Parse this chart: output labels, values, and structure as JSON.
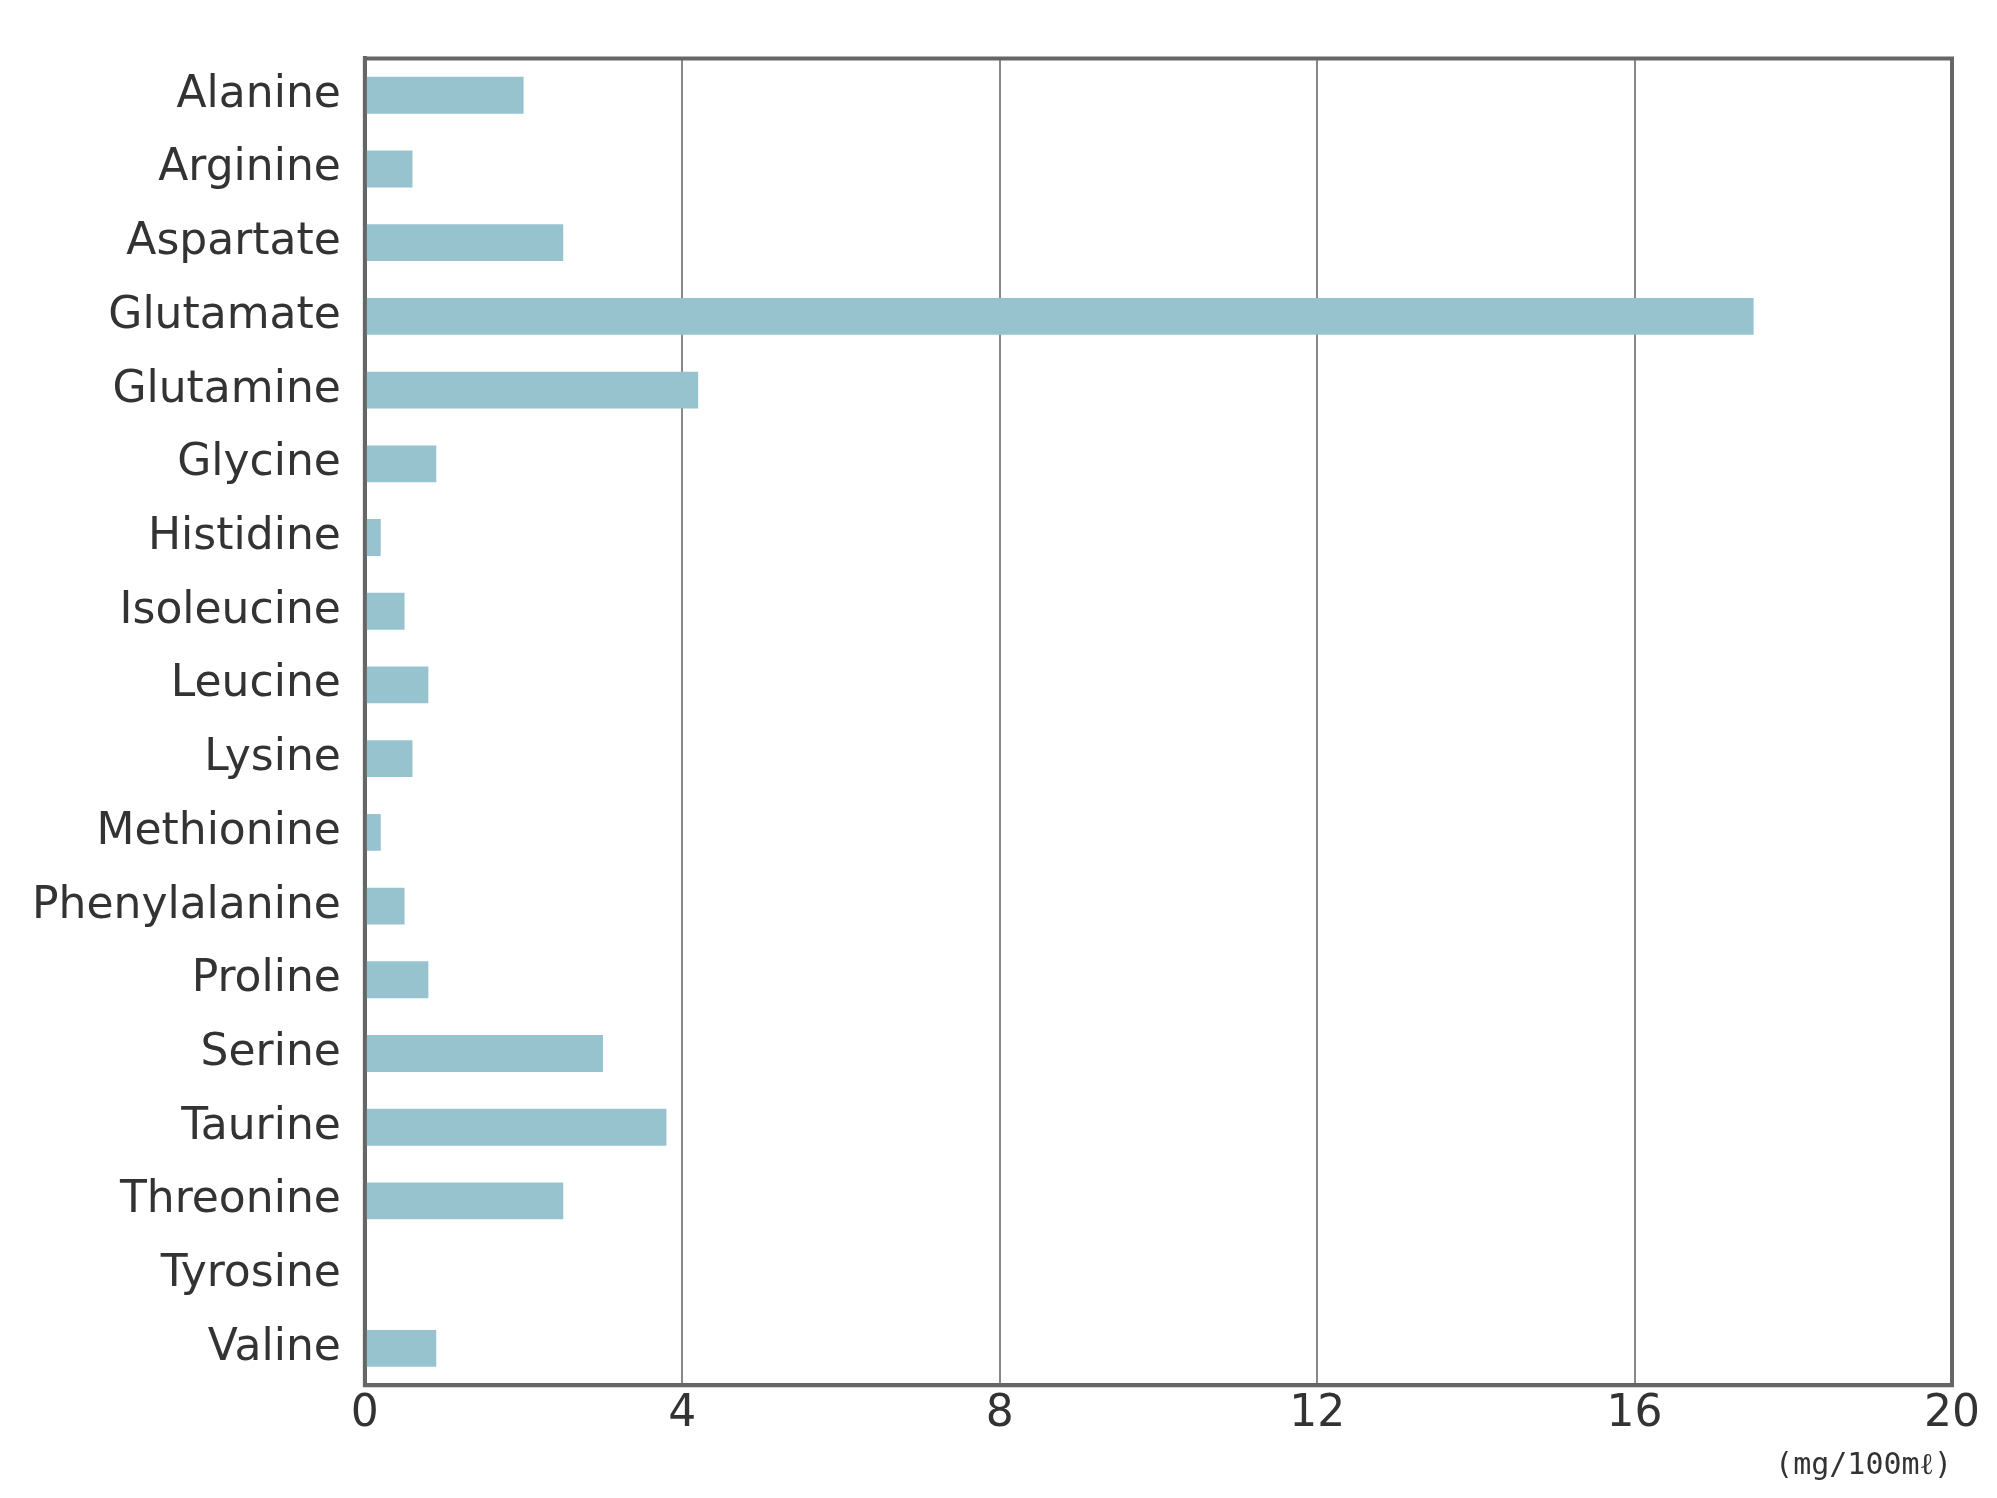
{
  "chart_data": {
    "type": "bar",
    "orientation": "horizontal",
    "xlabel": "(mg/100mℓ)",
    "categories": [
      "Alanine",
      "Arginine",
      "Aspartate",
      "Glutamate",
      "Glutamine",
      "Glycine",
      "Histidine",
      "Isoleucine",
      "Leucine",
      "Lysine",
      "Methionine",
      "Phenylalanine",
      "Proline",
      "Serine",
      "Taurine",
      "Threonine",
      "Tyrosine",
      "Valine"
    ],
    "values": [
      2.0,
      0.6,
      2.5,
      17.5,
      4.2,
      0.9,
      0.2,
      0.5,
      0.8,
      0.6,
      0.2,
      0.5,
      0.8,
      3.0,
      3.8,
      2.5,
      0,
      0.9
    ],
    "color": "#96c3cd",
    "xlim": [
      0,
      20
    ],
    "xticks": [
      0,
      4,
      8,
      12,
      16,
      20
    ],
    "grid": "x",
    "legend": false
  }
}
